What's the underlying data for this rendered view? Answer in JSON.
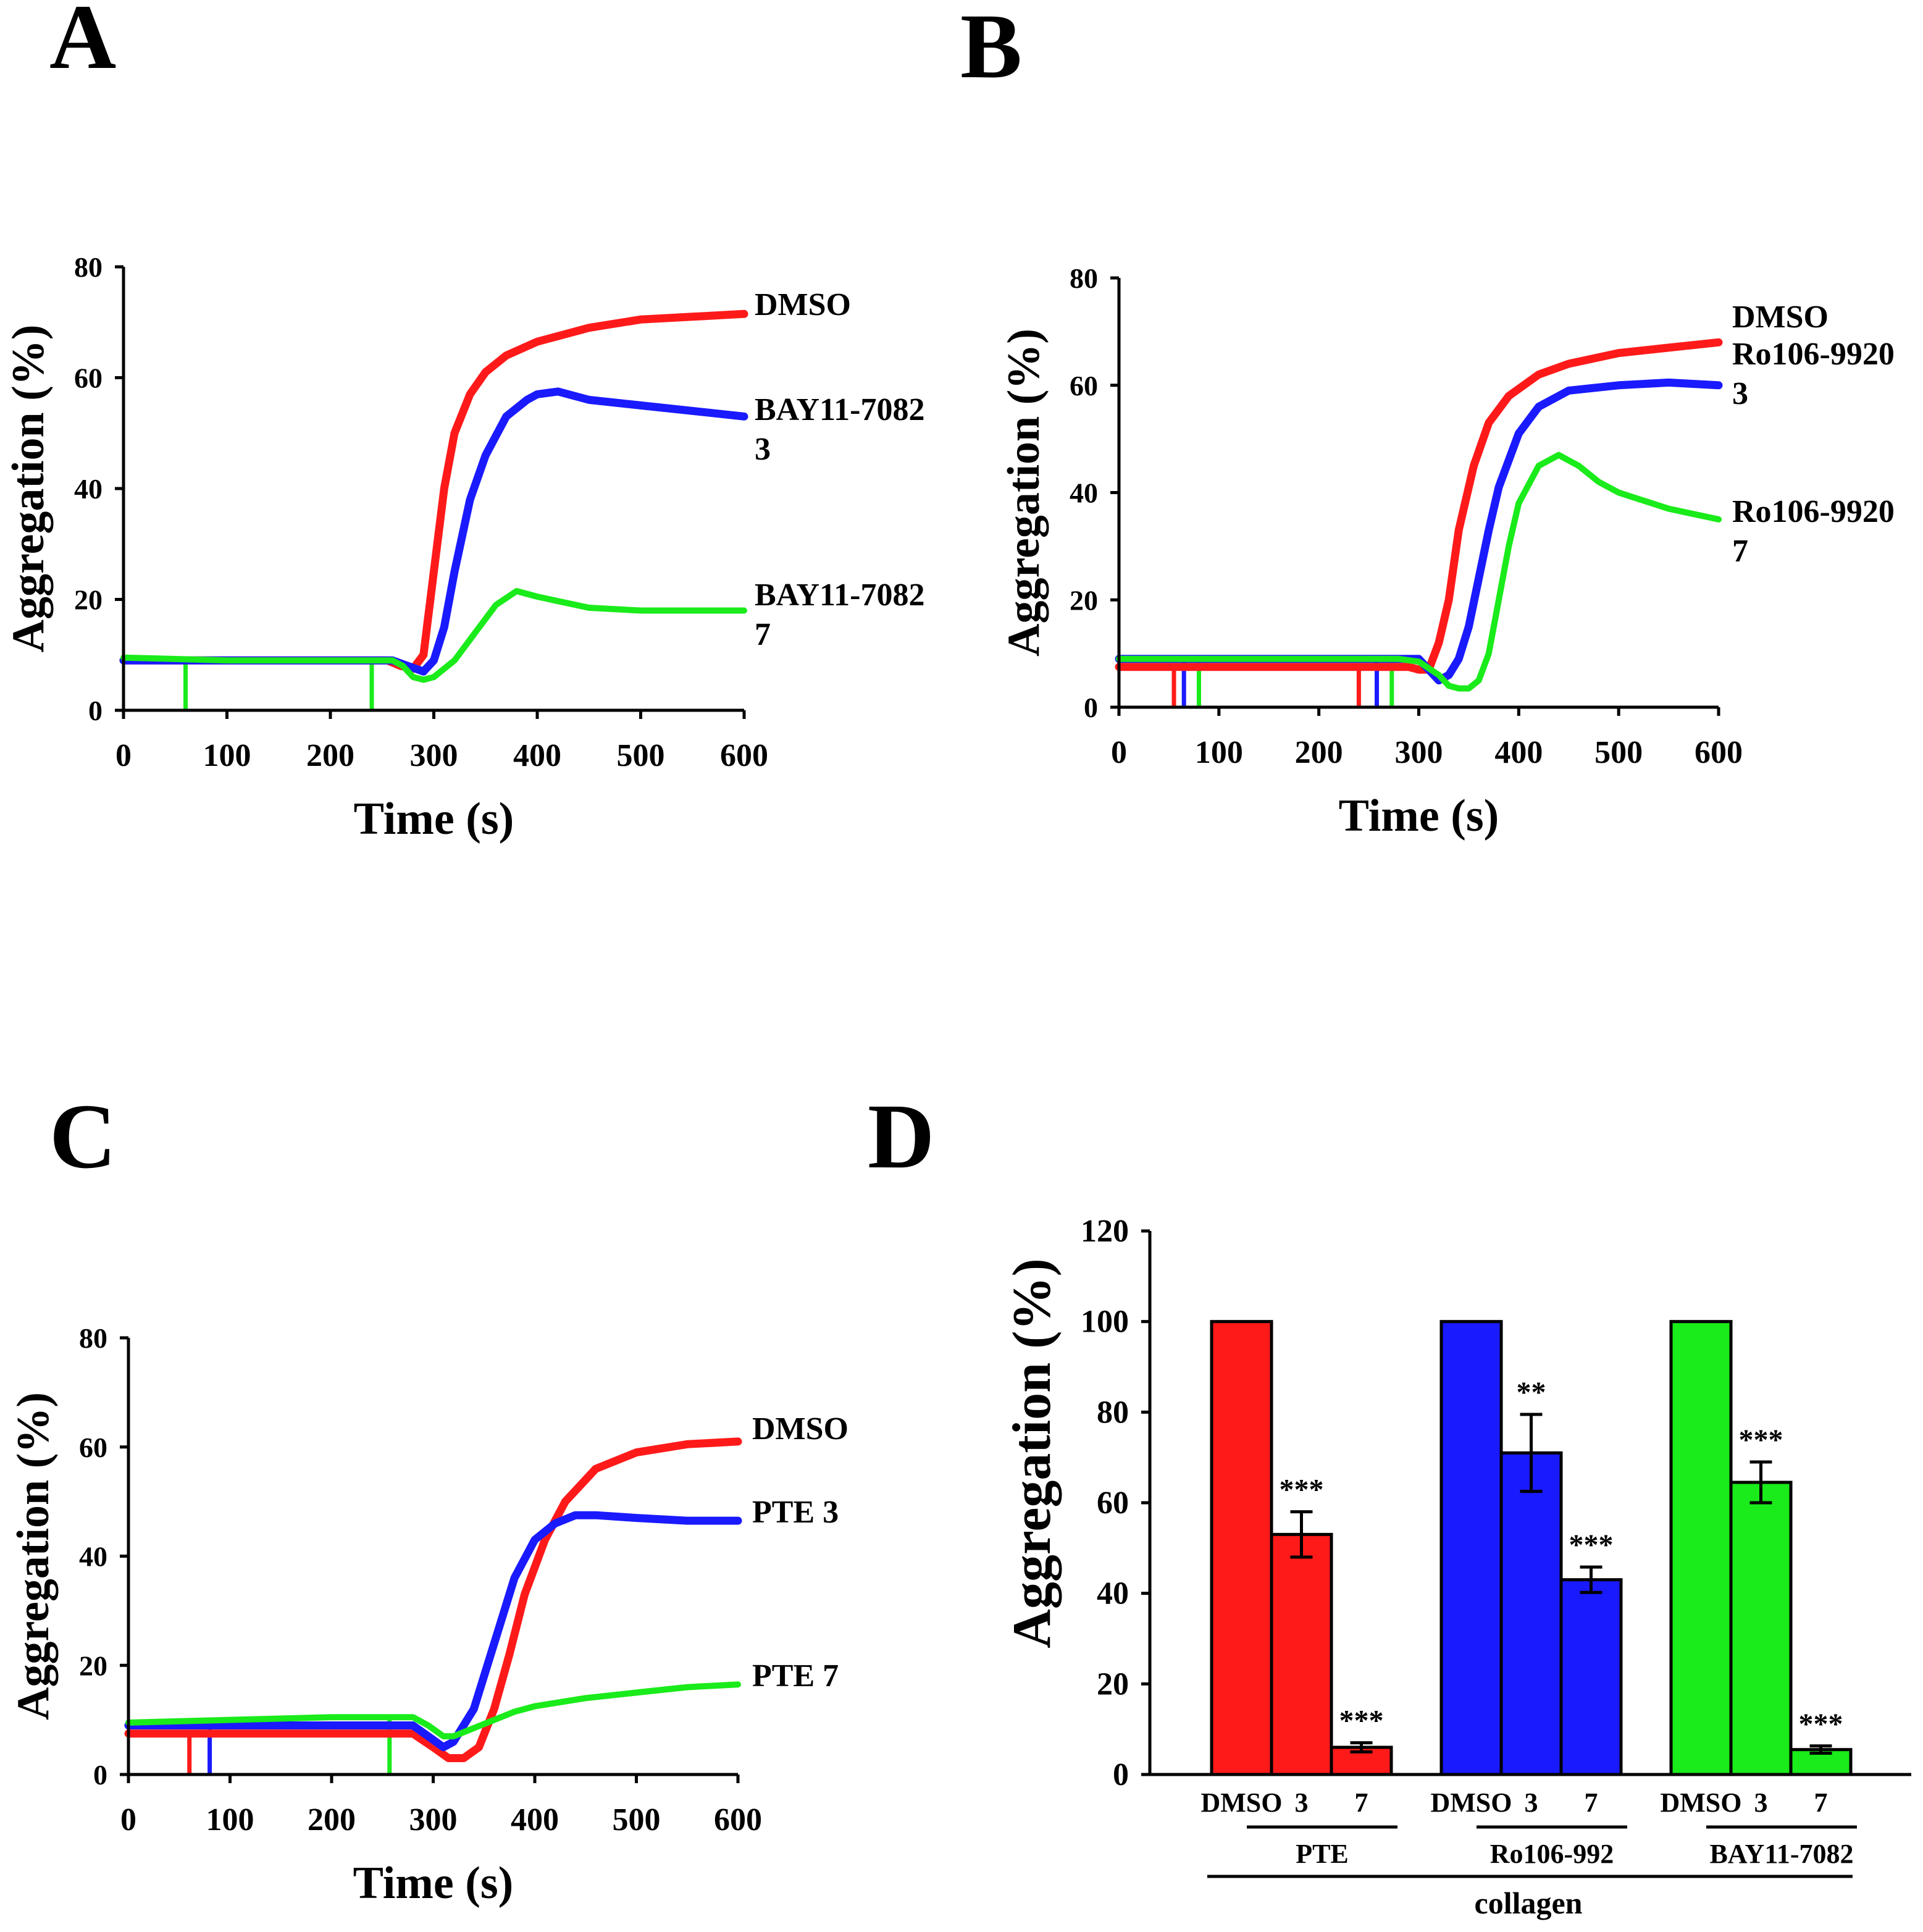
{
  "colors": {
    "red": "#ff1a1a",
    "blue": "#1a1aff",
    "green": "#1aeb1a",
    "axis": "#000000"
  },
  "chart_data": [
    {
      "panel": "A",
      "type": "line",
      "xlabel": "Time (s)",
      "ylabel": "Aggregation (%)",
      "xlim": [
        0,
        600
      ],
      "ylim": [
        0,
        80
      ],
      "xticks": [
        0,
        100,
        200,
        300,
        400,
        500,
        600
      ],
      "yticks": [
        0,
        20,
        40,
        60,
        80
      ],
      "series": [
        {
          "name": "DMSO",
          "label_lines": [
            "DMSO"
          ],
          "color": "red",
          "x": [
            0,
            100,
            200,
            255,
            268,
            280,
            290,
            300,
            310,
            320,
            335,
            350,
            370,
            400,
            450,
            500,
            550,
            600
          ],
          "y": [
            9,
            9,
            9,
            9,
            8,
            7.5,
            10,
            25,
            40,
            50,
            57,
            61,
            64,
            66.5,
            69,
            70.5,
            71,
            71.5
          ]
        },
        {
          "name": "BAY11-7082 3",
          "label_lines": [
            "BAY11-7082",
            "3"
          ],
          "color": "blue",
          "x": [
            0,
            100,
            200,
            260,
            275,
            290,
            300,
            310,
            320,
            335,
            350,
            370,
            390,
            400,
            420,
            450,
            500,
            550,
            600
          ],
          "y": [
            9,
            9,
            9,
            9,
            8,
            7,
            9,
            15,
            25,
            38,
            46,
            53,
            56,
            57,
            57.5,
            56,
            55,
            54,
            53
          ]
        },
        {
          "name": "BAY11-7082 7",
          "label_lines": [
            "BAY11-7082",
            "7"
          ],
          "color": "green",
          "x": [
            0,
            100,
            200,
            260,
            270,
            280,
            290,
            300,
            320,
            340,
            360,
            380,
            400,
            450,
            500,
            550,
            600
          ],
          "y": [
            9.5,
            9,
            9,
            9,
            8,
            6,
            5.5,
            6,
            9,
            14,
            19,
            21.5,
            20.5,
            18.5,
            18,
            18,
            18
          ]
        }
      ],
      "spikes": [
        {
          "x": 60,
          "color": "green",
          "top": 9,
          "bottom": 0
        },
        {
          "x": 240,
          "color": "green",
          "top": 9,
          "bottom": 0
        }
      ]
    },
    {
      "panel": "B",
      "type": "line",
      "xlabel": "Time (s)",
      "ylabel": "Aggregation (%)",
      "xlim": [
        0,
        600
      ],
      "ylim": [
        0,
        80
      ],
      "xticks": [
        0,
        100,
        200,
        300,
        400,
        500,
        600
      ],
      "yticks": [
        0,
        20,
        40,
        60,
        80
      ],
      "series": [
        {
          "name": "DMSO",
          "label_lines": [
            "DMSO"
          ],
          "color": "red",
          "x": [
            0,
            100,
            200,
            290,
            300,
            310,
            320,
            330,
            340,
            355,
            370,
            390,
            420,
            450,
            500,
            550,
            600
          ],
          "y": [
            7.5,
            7.5,
            7.5,
            7.5,
            7,
            7,
            12,
            20,
            33,
            45,
            53,
            58,
            62,
            64,
            66,
            67,
            68
          ]
        },
        {
          "name": "Ro106-9920 3",
          "label_lines": [
            "Ro106-9920",
            "3"
          ],
          "color": "blue",
          "x": [
            0,
            100,
            200,
            300,
            310,
            320,
            330,
            340,
            350,
            360,
            370,
            380,
            400,
            420,
            450,
            500,
            550,
            600
          ],
          "y": [
            9,
            9,
            9,
            9,
            7,
            5,
            6,
            9,
            15,
            24,
            33,
            41,
            51,
            56,
            59,
            60,
            60.5,
            60
          ]
        },
        {
          "name": "Ro106-9920 7",
          "label_lines": [
            "Ro106-9920",
            "7"
          ],
          "color": "green",
          "x": [
            0,
            100,
            200,
            280,
            300,
            320,
            330,
            340,
            350,
            360,
            370,
            380,
            390,
            400,
            420,
            440,
            460,
            480,
            500,
            550,
            600
          ],
          "y": [
            9,
            9,
            9,
            9,
            8.5,
            6,
            4,
            3.5,
            3.5,
            5,
            10,
            20,
            30,
            38,
            45,
            47,
            45,
            42,
            40,
            37,
            35
          ]
        }
      ],
      "spikes": [
        {
          "x": 55,
          "color": "red",
          "top": 8,
          "bottom": 0
        },
        {
          "x": 65,
          "color": "blue",
          "top": 9,
          "bottom": 0
        },
        {
          "x": 80,
          "color": "green",
          "top": 9,
          "bottom": 0
        },
        {
          "x": 240,
          "color": "red",
          "top": 8,
          "bottom": 0
        },
        {
          "x": 258,
          "color": "blue",
          "top": 9,
          "bottom": 0
        },
        {
          "x": 273,
          "color": "green",
          "top": 9,
          "bottom": 0
        }
      ]
    },
    {
      "panel": "C",
      "type": "line",
      "xlabel": "Time (s)",
      "ylabel": "Aggregation (%)",
      "xlim": [
        0,
        600
      ],
      "ylim": [
        0,
        80
      ],
      "xticks": [
        0,
        100,
        200,
        300,
        400,
        500,
        600
      ],
      "yticks": [
        0,
        20,
        40,
        60,
        80
      ],
      "series": [
        {
          "name": "DMSO",
          "label_lines": [
            "DMSO"
          ],
          "color": "red",
          "x": [
            0,
            100,
            200,
            280,
            300,
            315,
            330,
            345,
            360,
            375,
            390,
            410,
            430,
            460,
            500,
            550,
            600
          ],
          "y": [
            7.5,
            7.5,
            7.5,
            7.5,
            5,
            3,
            3,
            5,
            12,
            22,
            33,
            43,
            50,
            56,
            59,
            60.5,
            61
          ]
        },
        {
          "name": "PTE 3",
          "label_lines": [
            "PTE  3"
          ],
          "color": "blue",
          "x": [
            0,
            100,
            200,
            280,
            295,
            310,
            320,
            340,
            360,
            380,
            400,
            420,
            440,
            460,
            500,
            550,
            600
          ],
          "y": [
            9,
            9,
            9,
            9,
            7,
            5,
            6,
            12,
            24,
            36,
            43,
            46,
            47.5,
            47.5,
            47,
            46.5,
            46.5
          ]
        },
        {
          "name": "PTE 7",
          "label_lines": [
            "PTE  7"
          ],
          "color": "green",
          "x": [
            0,
            100,
            200,
            280,
            295,
            310,
            320,
            340,
            360,
            380,
            400,
            450,
            500,
            550,
            600
          ],
          "y": [
            9.5,
            10,
            10.5,
            10.5,
            9,
            7,
            7,
            8.5,
            10,
            11.5,
            12.5,
            14,
            15,
            16,
            16.5
          ]
        }
      ],
      "spikes": [
        {
          "x": 60,
          "color": "red",
          "top": 7.5,
          "bottom": 0
        },
        {
          "x": 80,
          "color": "blue",
          "top": 9,
          "bottom": 0
        },
        {
          "x": 257,
          "color": "green",
          "top": 10.5,
          "bottom": 0
        }
      ]
    },
    {
      "panel": "D",
      "type": "bar",
      "ylabel": "Aggregation (%)",
      "ylim": [
        0,
        120
      ],
      "yticks": [
        0,
        20,
        40,
        60,
        80,
        100,
        120
      ],
      "categories": [
        "DMSO",
        "3",
        "7",
        "DMSO",
        "3",
        "7",
        "DMSO",
        "3",
        "7"
      ],
      "values": [
        100,
        53,
        6,
        100,
        71,
        43,
        100,
        64.5,
        5.5
      ],
      "errors": [
        0,
        5,
        1,
        0,
        8.5,
        2.8,
        0,
        4.5,
        0.8
      ],
      "bar_colors": [
        "red",
        "red",
        "red",
        "blue",
        "blue",
        "blue",
        "green",
        "green",
        "green"
      ],
      "significance": [
        "",
        "***",
        "***",
        "",
        "**",
        "***",
        "",
        "***",
        "***"
      ],
      "groups": [
        {
          "label": "PTE",
          "categories": [
            1,
            2
          ]
        },
        {
          "label": "Ro106-992",
          "categories": [
            4,
            5
          ]
        },
        {
          "label": "BAY11-7082",
          "categories": [
            7,
            8
          ]
        }
      ],
      "overall_label": "collagen"
    }
  ]
}
